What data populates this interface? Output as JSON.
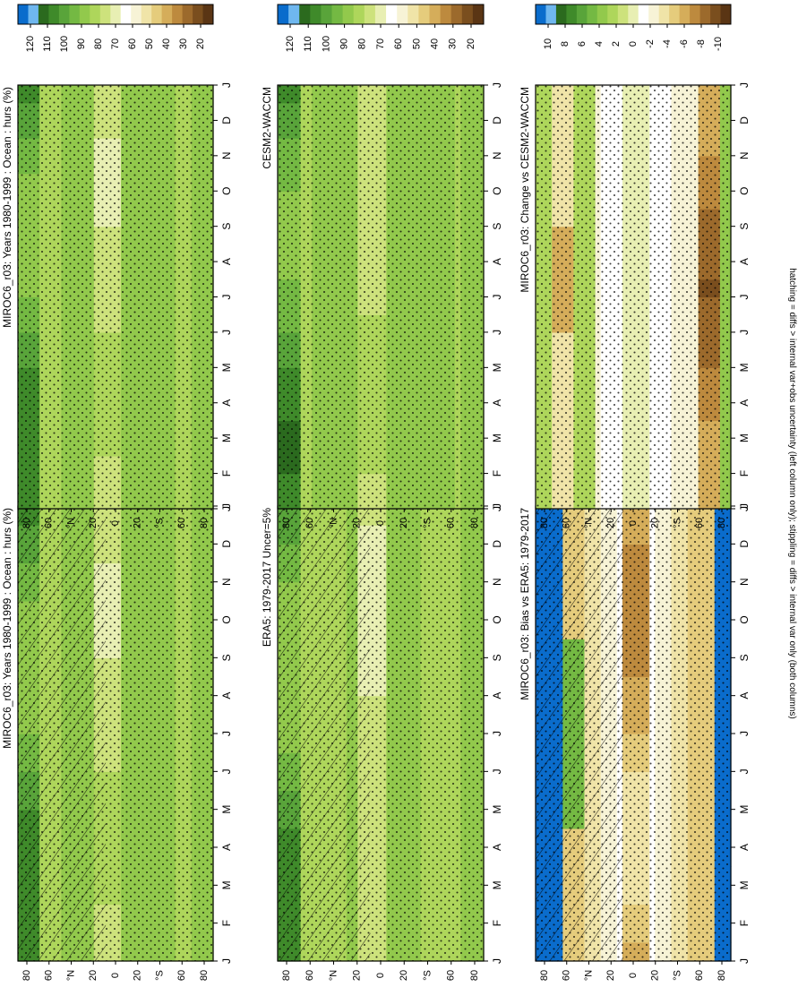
{
  "footer_note": "hatching = diffs > internal var+obs uncertainty (left column only); stippling = diffs > internal var only (both columns)",
  "colors": {
    "abs_scale": [
      "#0a6ccc",
      "#6fb7ef",
      "#2b6a1e",
      "#3f8a2a",
      "#59a43a",
      "#74b943",
      "#92c94c",
      "#aed65b",
      "#cde27c",
      "#e8efb3",
      "#ffffff",
      "#f7f3d6",
      "#f0e4a8",
      "#e5cc7c",
      "#d5ad5a",
      "#bd8a3e",
      "#9c6a2c",
      "#7a4e1e",
      "#5a3514"
    ],
    "diff_scale": [
      "#0a6ccc",
      "#6fb7ef",
      "#2b6a1e",
      "#3f8a2a",
      "#59a43a",
      "#74b943",
      "#92c94c",
      "#aed65b",
      "#cde27c",
      "#e8efb3",
      "#ffffff",
      "#f7f3d6",
      "#f0e4a8",
      "#e5cc7c",
      "#d5ad5a",
      "#bd8a3e",
      "#9c6a2c",
      "#7a4e1e",
      "#5a3514"
    ]
  },
  "chart_data": [
    {
      "type": "heatmap",
      "title": "MIROC6_r03: Years 1980-1999 : Ocean : hurs (%)",
      "x_ticks": [
        "J",
        "F",
        "M",
        "A",
        "M",
        "J",
        "J",
        "A",
        "S",
        "O",
        "N",
        "D",
        "J"
      ],
      "y_ticks": [
        "80",
        "60",
        "°N",
        "20",
        "0",
        "20",
        "°S",
        "60",
        "80"
      ],
      "colorbar_ticks": [
        "120",
        "110",
        "100",
        "90",
        "80",
        "70",
        "60",
        "50",
        "40",
        "30",
        "20"
      ],
      "hatched": true,
      "field": "abs_model"
    },
    {
      "type": "heatmap",
      "title": "MIROC6_r03: Years 1980-1999 : Ocean : hurs (%)",
      "x_ticks": [
        "J",
        "F",
        "M",
        "A",
        "M",
        "J",
        "J",
        "A",
        "S",
        "O",
        "N",
        "D",
        "J"
      ],
      "y_ticks": [
        "80",
        "60",
        "°N",
        "20",
        "0",
        "20",
        "°S",
        "60",
        "80"
      ],
      "colorbar_ticks": [
        "120",
        "110",
        "100",
        "90",
        "80",
        "70",
        "60",
        "50",
        "40",
        "30",
        "20"
      ],
      "hatched": false,
      "field": "abs_model"
    },
    {
      "type": "heatmap",
      "title": "ERA5: 1979-2017 Uncer=5%",
      "x_ticks": [
        "J",
        "F",
        "M",
        "A",
        "M",
        "J",
        "J",
        "A",
        "S",
        "O",
        "N",
        "D",
        "J"
      ],
      "y_ticks": [
        "80",
        "60",
        "°N",
        "20",
        "0",
        "20",
        "°S",
        "60",
        "80"
      ],
      "colorbar_ticks": [
        "120",
        "110",
        "100",
        "90",
        "80",
        "70",
        "60",
        "50",
        "40",
        "30",
        "20"
      ],
      "hatched": true,
      "field": "abs_obs"
    },
    {
      "type": "heatmap",
      "title": "CESM2-WACCM",
      "x_ticks": [
        "J",
        "F",
        "M",
        "A",
        "M",
        "J",
        "J",
        "A",
        "S",
        "O",
        "N",
        "D",
        "J"
      ],
      "y_ticks": [
        "80",
        "60",
        "°N",
        "20",
        "0",
        "20",
        "°S",
        "60",
        "80"
      ],
      "colorbar_ticks": [
        "120",
        "110",
        "100",
        "90",
        "80",
        "70",
        "60",
        "50",
        "40",
        "30",
        "20"
      ],
      "hatched": false,
      "field": "abs_cesm"
    },
    {
      "type": "heatmap",
      "title": "MIROC6_r03: Bias vs ERA5: 1979-2017",
      "x_ticks": [
        "J",
        "F",
        "M",
        "A",
        "M",
        "J",
        "J",
        "A",
        "S",
        "O",
        "N",
        "D",
        "J"
      ],
      "y_ticks": [
        "80",
        "60",
        "°N",
        "20",
        "0",
        "20",
        "°S",
        "60",
        "80"
      ],
      "colorbar_ticks": [
        "10",
        "8",
        "6",
        "4",
        "2",
        "0",
        "-2",
        "-4",
        "-6",
        "-8",
        "-10"
      ],
      "hatched": true,
      "field": "bias"
    },
    {
      "type": "heatmap",
      "title": "MIROC6_r03: Change vs CESM2-WACCM",
      "x_ticks": [
        "J",
        "F",
        "M",
        "A",
        "M",
        "J",
        "J",
        "A",
        "S",
        "O",
        "N",
        "D",
        "J"
      ],
      "y_ticks": [
        "80",
        "60",
        "°N",
        "20",
        "0",
        "20",
        "°S",
        "60",
        "80"
      ],
      "colorbar_ticks": [
        "10",
        "8",
        "6",
        "4",
        "2",
        "0",
        "-2",
        "-4",
        "-6",
        "-8",
        "-10"
      ],
      "hatched": false,
      "field": "change"
    }
  ]
}
